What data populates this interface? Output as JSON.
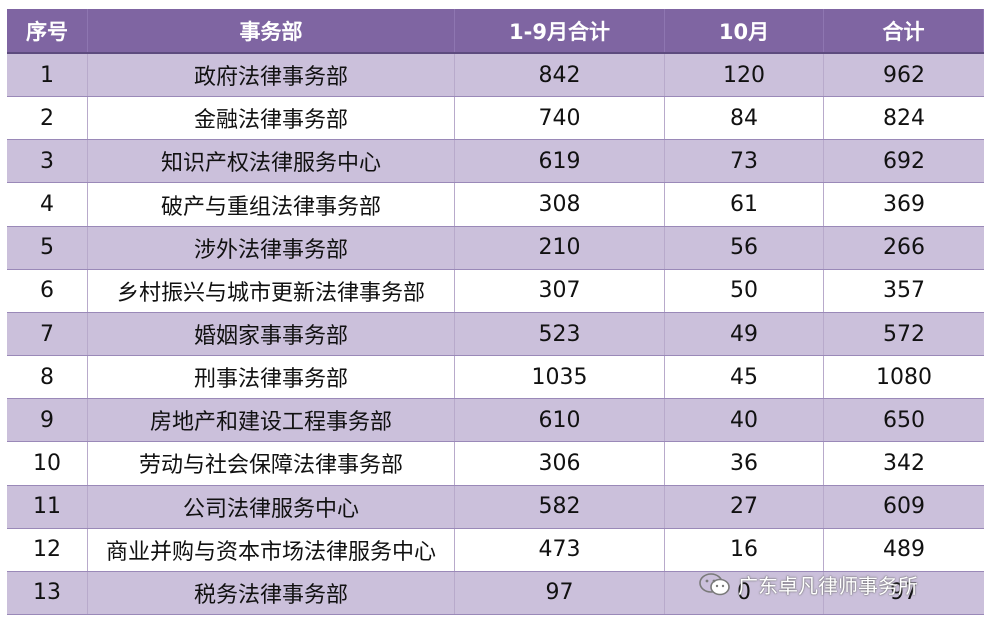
{
  "chart_data": {
    "type": "table",
    "columns": [
      "序号",
      "事务部",
      "1-9月合计",
      "10月",
      "合计"
    ],
    "rows": [
      [
        "1",
        "政府法律事务部",
        "842",
        "120",
        "962"
      ],
      [
        "2",
        "金融法律事务部",
        "740",
        "84",
        "824"
      ],
      [
        "3",
        "知识产权法律服务中心",
        "619",
        "73",
        "692"
      ],
      [
        "4",
        "破产与重组法律事务部",
        "308",
        "61",
        "369"
      ],
      [
        "5",
        "涉外法律事务部",
        "210",
        "56",
        "266"
      ],
      [
        "6",
        "乡村振兴与城市更新法律事务部",
        "307",
        "50",
        "357"
      ],
      [
        "7",
        "婚姻家事事务部",
        "523",
        "49",
        "572"
      ],
      [
        "8",
        "刑事法律事务部",
        "1035",
        "45",
        "1080"
      ],
      [
        "9",
        "房地产和建设工程事务部",
        "610",
        "40",
        "650"
      ],
      [
        "10",
        "劳动与社会保障法律事务部",
        "306",
        "36",
        "342"
      ],
      [
        "11",
        "公司法律服务中心",
        "582",
        "27",
        "609"
      ],
      [
        "12",
        "商业并购与资本市场法律服务中心",
        "473",
        "16",
        "489"
      ],
      [
        "13",
        "税务法律事务部",
        "97",
        "0",
        "97"
      ]
    ],
    "colors": {
      "header": "#7f65a2",
      "stripe": "#cbc0db",
      "plain": "#ffffff"
    }
  },
  "watermark": {
    "text": "广东卓凡律师事务所",
    "icon": "wechat-icon"
  }
}
